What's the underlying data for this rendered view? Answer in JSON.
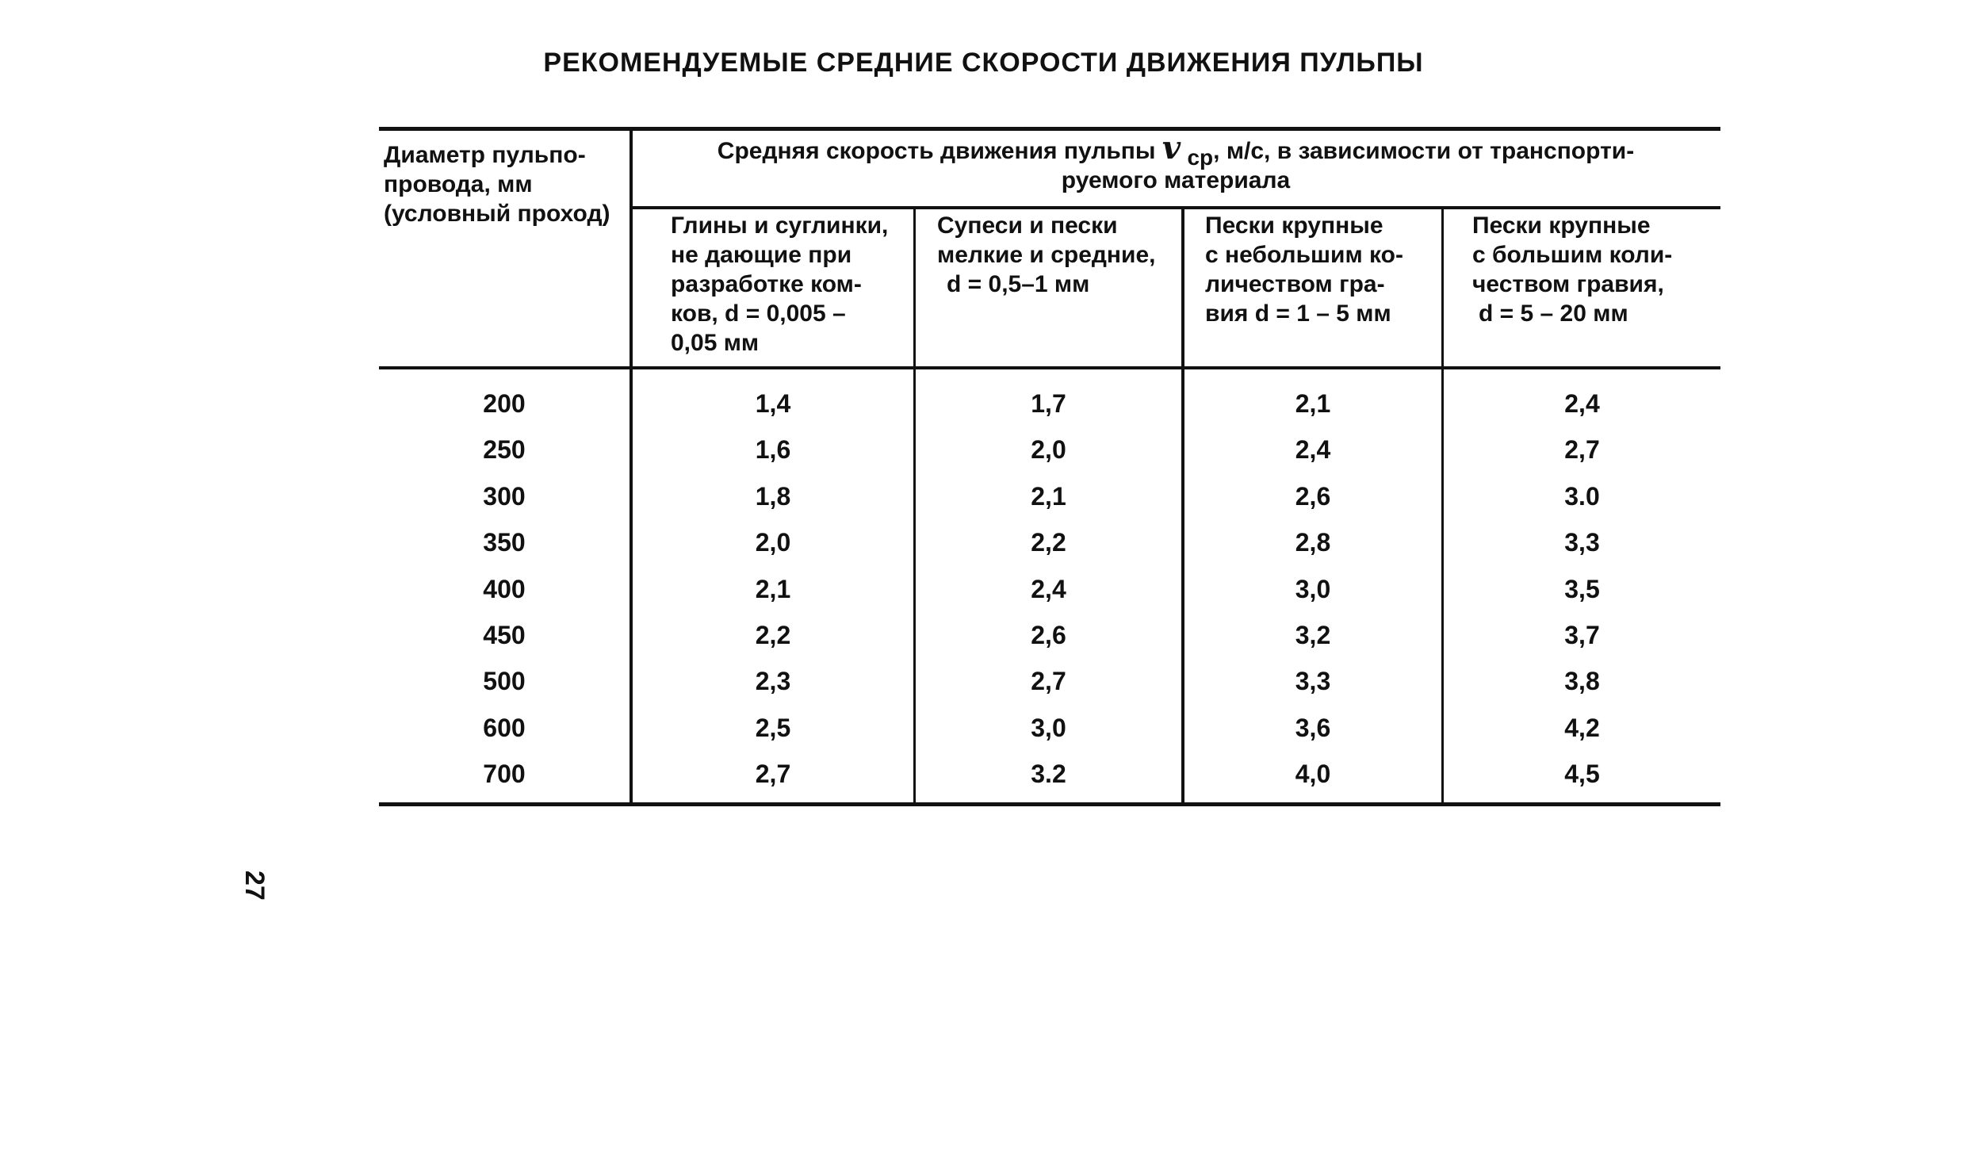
{
  "title": "РЕКОМЕНДУЕМЫЕ СРЕДНИЕ СКОРОСТИ ДВИЖЕНИЯ ПУЛЬПЫ",
  "table": {
    "lead_header": [
      "Диаметр пульпо-",
      "провода, мм",
      "(условный проход)"
    ],
    "group_header": {
      "before_symbol": "Средняя скорость движения пульпы ",
      "symbol": "v",
      "subscript": "ср",
      "after_symbol": ", м/с, в зависимости от транспорти-",
      "line2": "руемого материала"
    },
    "sub_headers": [
      [
        "Глины и суглинки,",
        "не дающие при",
        "разработке ком-",
        "ков, d = 0,005 –",
        "0,05 мм"
      ],
      [
        "Супеси и пески",
        "мелкие и средние,",
        "d = 0,5–1 мм"
      ],
      [
        "Пески крупные",
        "с небольшим ко-",
        "личеством гра-",
        "вия d = 1 – 5 мм"
      ],
      [
        "Пески крупные",
        "с большим коли-",
        "чеством гравия,",
        "d = 5 – 20 мм"
      ]
    ],
    "diameters": [
      "200",
      "250",
      "300",
      "350",
      "400",
      "450",
      "500",
      "600",
      "700"
    ],
    "columns": [
      [
        "1,4",
        "1,6",
        "1,8",
        "2,0",
        "2,1",
        "2,2",
        "2,3",
        "2,5",
        "2,7"
      ],
      [
        "1,7",
        "2,0",
        "2,1",
        "2,2",
        "2,4",
        "2,6",
        "2,7",
        "3,0",
        "3.2"
      ],
      [
        "2,1",
        "2,4",
        "2,6",
        "2,8",
        "3,0",
        "3,2",
        "3,3",
        "3,6",
        "4,0"
      ],
      [
        "2,4",
        "2,7",
        "3.0",
        "3,3",
        "3,5",
        "3,7",
        "3,8",
        "4,2",
        "4,5"
      ]
    ]
  },
  "page_number": "27"
}
